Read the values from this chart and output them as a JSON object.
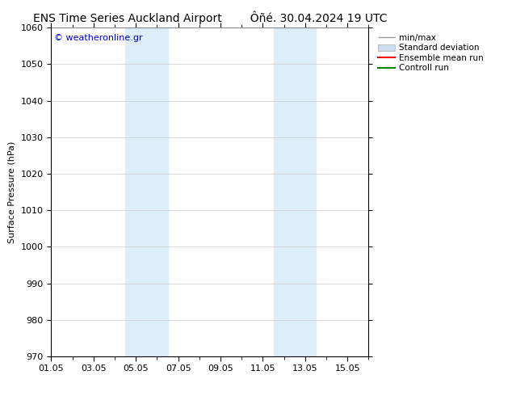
{
  "title_left": "ENS Time Series Auckland Airport",
  "title_right": "Ôñé. 30.04.2024 19 UTC",
  "ylabel": "Surface Pressure (hPa)",
  "ylim": [
    970,
    1060
  ],
  "yticks": [
    970,
    980,
    990,
    1000,
    1010,
    1020,
    1030,
    1040,
    1050,
    1060
  ],
  "xlim_start": 0,
  "xlim_end": 15,
  "xtick_positions": [
    0,
    2,
    4,
    6,
    8,
    10,
    12,
    14
  ],
  "xtick_labels": [
    "01.05",
    "03.05",
    "05.05",
    "07.05",
    "09.05",
    "11.05",
    "13.05",
    "15.05"
  ],
  "shaded_bands": [
    {
      "x_start": 3.5,
      "x_end": 5.5
    },
    {
      "x_start": 10.5,
      "x_end": 12.5
    }
  ],
  "shaded_color": "#dceef9",
  "copyright_text": "© weatheronline.gr",
  "copyright_color": "#0000cc",
  "legend_items": [
    {
      "label": "min/max",
      "color": "#999999",
      "style": "errorbar"
    },
    {
      "label": "Standard deviation",
      "color": "#ccddef",
      "style": "box"
    },
    {
      "label": "Ensemble mean run",
      "color": "#ff0000",
      "style": "line"
    },
    {
      "label": "Controll run",
      "color": "#008000",
      "style": "line"
    }
  ],
  "background_color": "#ffffff",
  "grid_color": "#cccccc",
  "title_fontsize": 10,
  "axis_label_fontsize": 8,
  "tick_fontsize": 8,
  "legend_fontsize": 7.5
}
